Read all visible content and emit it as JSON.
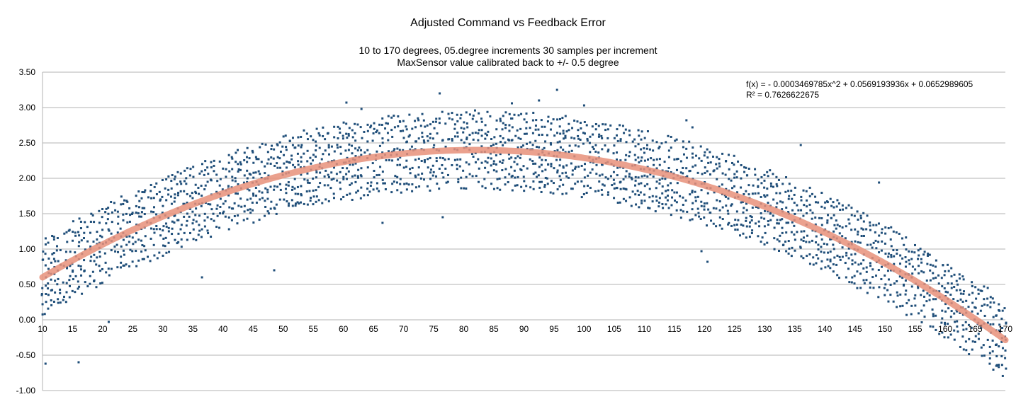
{
  "chart_data": {
    "type": "scatter",
    "title": "Adjusted Command vs Feedback Error",
    "subtitle_lines": [
      "10 to 170 degrees, 05.degree increments 30 samples per increment",
      "MaxSensor value calibrated back to +/- 0.5 degree"
    ],
    "xlabel": "",
    "ylabel": "",
    "xlim": [
      10,
      170
    ],
    "ylim": [
      -1.0,
      3.5
    ],
    "x_ticks": [
      10,
      15,
      20,
      25,
      30,
      35,
      40,
      45,
      50,
      55,
      60,
      65,
      70,
      75,
      80,
      85,
      90,
      95,
      100,
      105,
      110,
      115,
      120,
      125,
      130,
      135,
      140,
      145,
      150,
      155,
      160,
      165,
      170
    ],
    "y_ticks": [
      "3.50",
      "3.00",
      "2.50",
      "2.00",
      "1.50",
      "1.00",
      "0.50",
      "0.00",
      "-0.50",
      "-1.00"
    ],
    "grid": "horizontal",
    "legend": "none",
    "series": [
      {
        "color": "#1f4e79",
        "marker": "small-square",
        "x_start": 10,
        "x_end": 170,
        "x_step": 0.5,
        "band_offsets": [
          -0.5,
          -0.4,
          -0.3,
          -0.2,
          -0.1,
          0.0,
          0.1,
          0.2,
          0.3,
          0.4,
          0.5
        ],
        "outliers": [
          [
            10.5,
            -0.62
          ],
          [
            16,
            -0.6
          ],
          [
            21,
            -0.03
          ],
          [
            36.5,
            0.6
          ],
          [
            48.5,
            0.7
          ],
          [
            76,
            3.2
          ],
          [
            60.5,
            3.07
          ],
          [
            92.5,
            3.1
          ],
          [
            95.5,
            3.25
          ],
          [
            66.5,
            1.37
          ],
          [
            76.5,
            1.45
          ],
          [
            117,
            2.82
          ],
          [
            118,
            2.72
          ],
          [
            120.5,
            0.82
          ],
          [
            119.5,
            0.97
          ],
          [
            136,
            2.47
          ],
          [
            149,
            1.94
          ],
          [
            168.5,
            -0.65
          ],
          [
            63,
            2.98
          ],
          [
            88,
            3.06
          ],
          [
            100,
            3.03
          ]
        ]
      }
    ],
    "trendline": {
      "type": "polynomial",
      "color": "#e8907a",
      "a": -0.0003469785,
      "b": 0.0569193936,
      "c": 0.0652989605,
      "equation_label": "f(x) =  - 0.0003469785x^2 + 0.0569193936x + 0.0652989605",
      "r2_label": "R² = 0.7626622675"
    }
  }
}
